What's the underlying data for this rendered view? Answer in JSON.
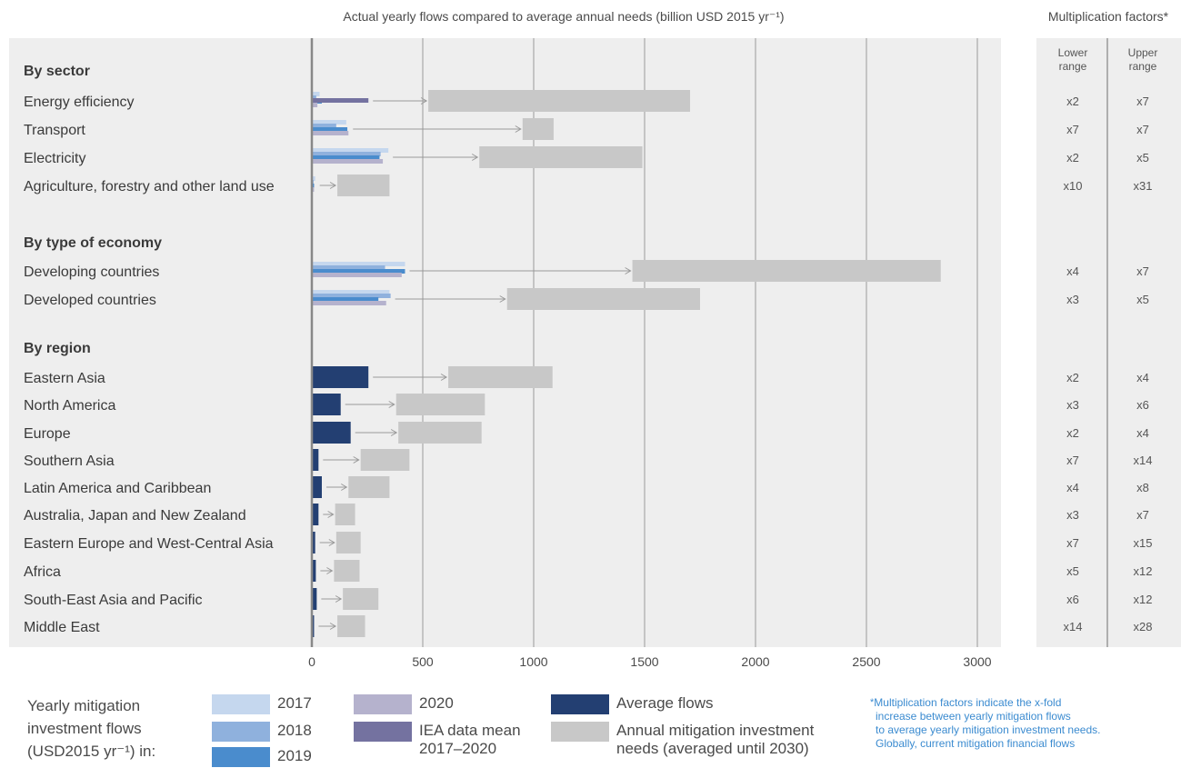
{
  "chart_data": {
    "type": "bar",
    "title": "Actual yearly flows compared to average annual needs (billion USD 2015 yr⁻¹)",
    "xlabel": "",
    "ylabel": "",
    "xlim": [
      0,
      3000
    ],
    "xticks": [
      0,
      500,
      1000,
      1500,
      2000,
      2500,
      3000
    ],
    "grid": true,
    "groups": [
      {
        "label": "By sector",
        "rows": [
          {
            "label": "Energy efficiency",
            "flows": {
              "2017": 35,
              "2018": 20,
              "2019": 45,
              "2020": 25,
              "IEA data mean 2017–2020": 255
            },
            "needs": [
              525,
              1705
            ],
            "multiplier": {
              "lower": "x2",
              "upper": "x7"
            }
          },
          {
            "label": "Transport",
            "flows": {
              "2017": 155,
              "2018": 110,
              "2019": 160,
              "2020": 165
            },
            "needs": [
              950,
              1090
            ],
            "multiplier": {
              "lower": "x7",
              "upper": "x7"
            }
          },
          {
            "label": "Electricity",
            "flows": {
              "2017": 345,
              "2018": 310,
              "2019": 305,
              "2020": 320
            },
            "needs": [
              755,
              1490
            ],
            "multiplier": {
              "lower": "x2",
              "upper": "x5"
            }
          },
          {
            "label": "Agriculture, forestry and other land use",
            "flows": {
              "2017": 15,
              "2018": 8,
              "2019": 10,
              "2020": 10
            },
            "needs": [
              115,
              350
            ],
            "multiplier": {
              "lower": "x10",
              "upper": "x31"
            }
          }
        ]
      },
      {
        "label": "By type of economy",
        "rows": [
          {
            "label": "Developing countries",
            "flows": {
              "2017": 420,
              "2018": 330,
              "2019": 420,
              "2020": 405
            },
            "needs": [
              1445,
              2835
            ],
            "multiplier": {
              "lower": "x4",
              "upper": "x7"
            }
          },
          {
            "label": "Developed countries",
            "flows": {
              "2017": 350,
              "2018": 355,
              "2019": 300,
              "2020": 335
            },
            "needs": [
              880,
              1750
            ],
            "multiplier": {
              "lower": "x3",
              "upper": "x5"
            }
          }
        ]
      },
      {
        "label": "By region",
        "rows": [
          {
            "label": "Eastern Asia",
            "average": 255,
            "needs": [
              615,
              1085
            ],
            "multiplier": {
              "lower": "x2",
              "upper": "x4"
            }
          },
          {
            "label": "North America",
            "average": 130,
            "needs": [
              380,
              780
            ],
            "multiplier": {
              "lower": "x3",
              "upper": "x6"
            }
          },
          {
            "label": "Europe",
            "average": 175,
            "needs": [
              390,
              765
            ],
            "multiplier": {
              "lower": "x2",
              "upper": "x4"
            }
          },
          {
            "label": "Southern Asia",
            "average": 30,
            "needs": [
              220,
              440
            ],
            "multiplier": {
              "lower": "x7",
              "upper": "x14"
            }
          },
          {
            "label": "Latin America and Caribbean",
            "average": 45,
            "needs": [
              165,
              350
            ],
            "multiplier": {
              "lower": "x4",
              "upper": "x8"
            }
          },
          {
            "label": "Australia, Japan and New Zealand",
            "average": 30,
            "needs": [
              105,
              195
            ],
            "multiplier": {
              "lower": "x3",
              "upper": "x7"
            }
          },
          {
            "label": "Eastern Europe and West-Central Asia",
            "average": 15,
            "needs": [
              110,
              220
            ],
            "multiplier": {
              "lower": "x7",
              "upper": "x15"
            }
          },
          {
            "label": "Africa",
            "average": 18,
            "needs": [
              100,
              215
            ],
            "multiplier": {
              "lower": "x5",
              "upper": "x12"
            }
          },
          {
            "label": "South-East Asia and Pacific",
            "average": 22,
            "needs": [
              140,
              300
            ],
            "multiplier": {
              "lower": "x6",
              "upper": "x12"
            }
          },
          {
            "label": "Middle East",
            "average": 10,
            "needs": [
              115,
              240
            ],
            "multiplier": {
              "lower": "x14",
              "upper": "x28"
            }
          }
        ]
      }
    ]
  },
  "multiplier_panel": {
    "title": "Multiplication factors*",
    "lower_header": "Lower\nrange",
    "upper_header": "Upper\nrange"
  },
  "legend": {
    "title": "Yearly mitigation\ninvestment flows\n(USD2015 yr⁻¹) in:",
    "items": [
      {
        "key": "2017",
        "label": "2017",
        "color": "#c5d7ee"
      },
      {
        "key": "2018",
        "label": "2018",
        "color": "#8fb1dd"
      },
      {
        "key": "2019",
        "label": "2019",
        "color": "#4a8ccd"
      },
      {
        "key": "2020",
        "label": "2020",
        "color": "#b5b2cd"
      },
      {
        "key": "iea",
        "label": "IEA data mean\n2017–2020",
        "color": "#7472a0"
      },
      {
        "key": "average",
        "label": "Average flows",
        "color": "#233f72"
      },
      {
        "key": "needs",
        "label": "Annual mitigation investment\nneeds (averaged until 2030)",
        "color": "#c8c8c8"
      }
    ]
  },
  "colors": {
    "2017": "#c5d7ee",
    "2018": "#8fb1dd",
    "2019": "#4a8ccd",
    "2020": "#b5b2cd",
    "IEA data mean 2017–2020": "#7472a0",
    "average": "#233f72",
    "needs": "#c8c8c8",
    "panel": "#eeeeee",
    "arrow": "#999999",
    "grid": "#9a9a9a",
    "footnote": "#3b8bd0"
  },
  "footnote": {
    "star": "*",
    "text": "Multiplication factors indicate the x-fold\nincrease between yearly mitigation flows\nto average yearly mitigation investment needs.\nGlobally, current mitigation financial flows"
  }
}
